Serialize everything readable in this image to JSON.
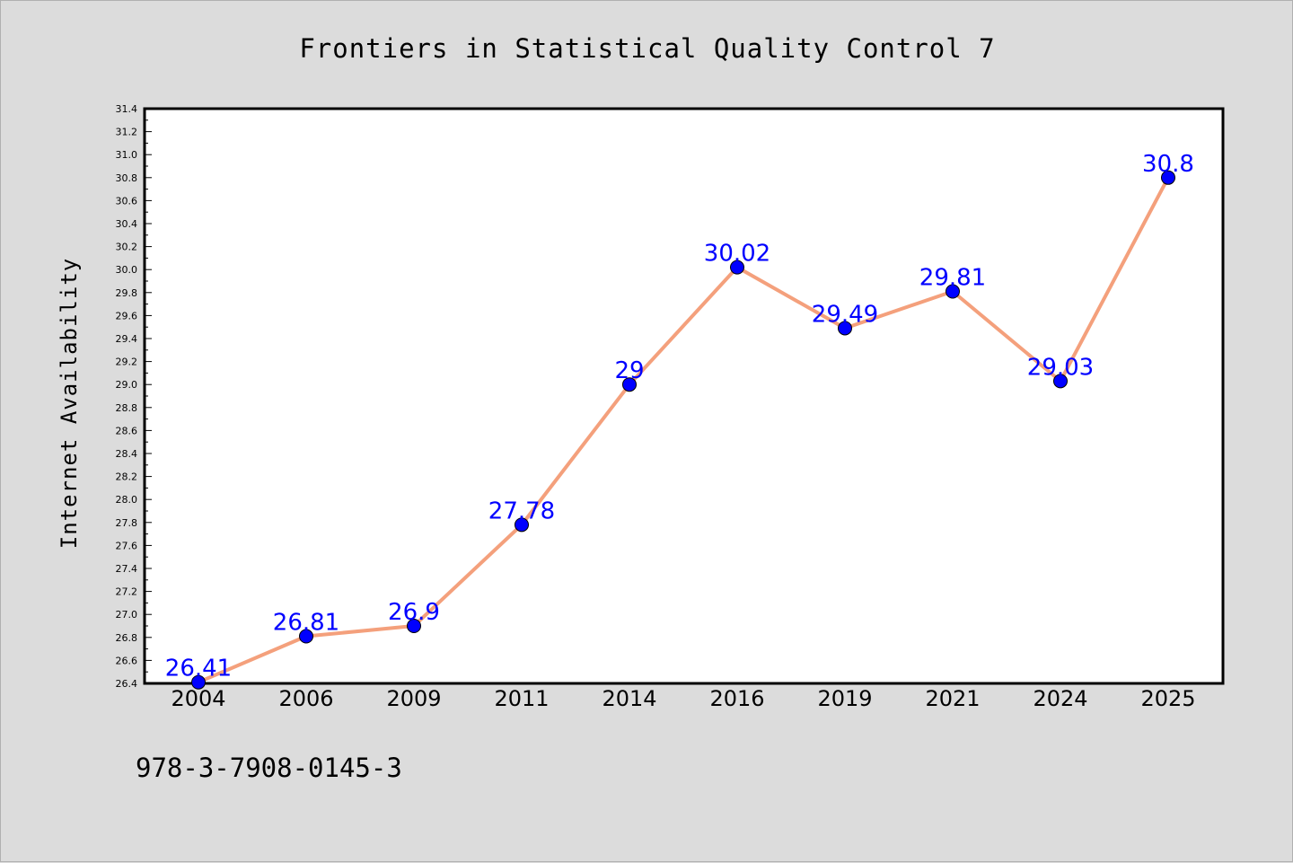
{
  "chart_data": {
    "type": "line",
    "title": "Frontiers in Statistical Quality Control 7",
    "xlabel": "",
    "ylabel": "Internet Availability",
    "categories": [
      "2004",
      "2006",
      "2009",
      "2011",
      "2014",
      "2016",
      "2019",
      "2021",
      "2024",
      "2025"
    ],
    "series": [
      {
        "values": [
          26.41,
          26.81,
          26.9,
          27.78,
          29,
          30.02,
          29.49,
          29.81,
          29.03,
          30.8
        ],
        "labels": [
          "26.41",
          "26.81",
          "26.9",
          "27.78",
          "29",
          "30.02",
          "29.49",
          "29.81",
          "29.03",
          "30.8"
        ]
      }
    ],
    "ylim": [
      26.4,
      31.4
    ],
    "yticks": [
      "26.4",
      "26.6",
      "26.8",
      "27.0",
      "27.2",
      "27.4",
      "27.6",
      "27.8",
      "28.0",
      "28.2",
      "28.4",
      "28.6",
      "28.8",
      "29.0",
      "29.2",
      "29.4",
      "29.6",
      "29.8",
      "30.0",
      "30.2",
      "30.4",
      "30.6",
      "30.8",
      "31.0",
      "31.2",
      "31.4"
    ],
    "grid": false,
    "colors": {
      "line": "#f4a07c",
      "marker": "#0000ff",
      "labels": "#0000ff",
      "background": "#dcdcdc",
      "plot_bg": "#ffffff"
    }
  },
  "footer": {
    "isbn": "978-3-7908-0145-3"
  }
}
